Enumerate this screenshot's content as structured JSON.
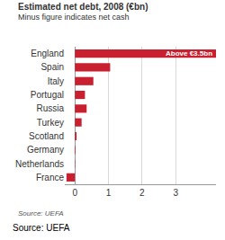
{
  "chart_data": {
    "type": "bar",
    "orientation": "horizontal",
    "title": "Estimated net debt, 2008 (€bn)",
    "subtitle": "Minus figure indicates net cash",
    "categories": [
      "England",
      "Spain",
      "Italy",
      "Portugal",
      "Russia",
      "Turkey",
      "Scotland",
      "Germany",
      "Netherlands",
      "France"
    ],
    "values": [
      4.2,
      1.05,
      0.55,
      0.3,
      0.35,
      0.2,
      0.05,
      0.02,
      0.01,
      -0.25
    ],
    "color": "#c8202f",
    "xlim": [
      -0.3,
      4.2
    ],
    "xticks": [
      0,
      1,
      2,
      3
    ],
    "grid": true,
    "annotations": [
      "Above €3.5bn"
    ],
    "source": "Source: UEFA",
    "caption": "Source: UEFA"
  }
}
